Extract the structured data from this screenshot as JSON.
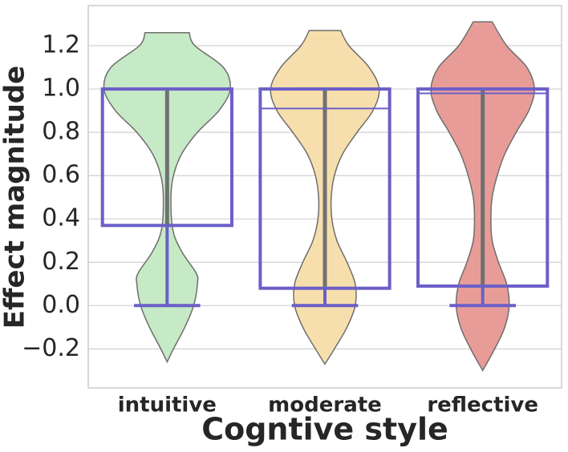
{
  "chart_data": {
    "type": "violin",
    "x_label": "Cogntive style",
    "y_label": "Effect magnitude",
    "ylim": [
      -0.38,
      1.385
    ],
    "yticks": [
      {
        "value": -0.2,
        "label": "−0.2"
      },
      {
        "value": 0,
        "label": "0.0"
      },
      0.2,
      0.4,
      0.6,
      0.8,
      {
        "value": 1,
        "label": "1.0"
      },
      1.2
    ],
    "grid": true,
    "box_color": "#6b5fc7",
    "inner_color": "#707070",
    "series": [
      {
        "name": "intuitive",
        "color": "#c6e9c6",
        "violin_y": [
          -0.26,
          -0.2,
          -0.1,
          0,
          0.1,
          0.15,
          0.25,
          0.35,
          0.5,
          0.6,
          0.7,
          0.8,
          0.9,
          1.0,
          1.1,
          1.2,
          1.26
        ],
        "violin_width": [
          0,
          0.1,
          0.28,
          0.42,
          0.48,
          0.46,
          0.23,
          0.09,
          0.06,
          0.1,
          0.23,
          0.48,
          0.82,
          1,
          0.89,
          0.44,
          0.35
        ],
        "box": {
          "low": 0,
          "q1": 0.37,
          "median": 1.0,
          "q3": 1.0,
          "high": 1.0
        }
      },
      {
        "name": "moderate",
        "color": "#f7dfad",
        "violin_y": [
          -0.27,
          -0.2,
          -0.1,
          0,
          0.1,
          0.2,
          0.3,
          0.4,
          0.5,
          0.6,
          0.7,
          0.8,
          0.9,
          1.0,
          1.1,
          1.2,
          1.27
        ],
        "violin_width": [
          0,
          0.15,
          0.35,
          0.48,
          0.48,
          0.35,
          0.19,
          0.11,
          0.1,
          0.15,
          0.28,
          0.51,
          0.76,
          0.86,
          0.7,
          0.38,
          0.25
        ],
        "box": {
          "low": 0,
          "q1": 0.08,
          "median": 0.91,
          "q3": 1.0,
          "high": 1.0
        }
      },
      {
        "name": "reflective",
        "color": "#e89c98",
        "violin_y": [
          -0.3,
          -0.2,
          -0.1,
          0,
          0.1,
          0.2,
          0.3,
          0.4,
          0.5,
          0.6,
          0.7,
          0.8,
          0.9,
          1.0,
          1.1,
          1.2,
          1.31
        ],
        "violin_width": [
          0,
          0.19,
          0.35,
          0.42,
          0.38,
          0.25,
          0.15,
          0.13,
          0.15,
          0.23,
          0.35,
          0.53,
          0.73,
          0.82,
          0.7,
          0.38,
          0.15
        ],
        "box": {
          "low": 0,
          "q1": 0.09,
          "median": 0.98,
          "q3": 1.0,
          "high": 1.0
        }
      }
    ]
  }
}
